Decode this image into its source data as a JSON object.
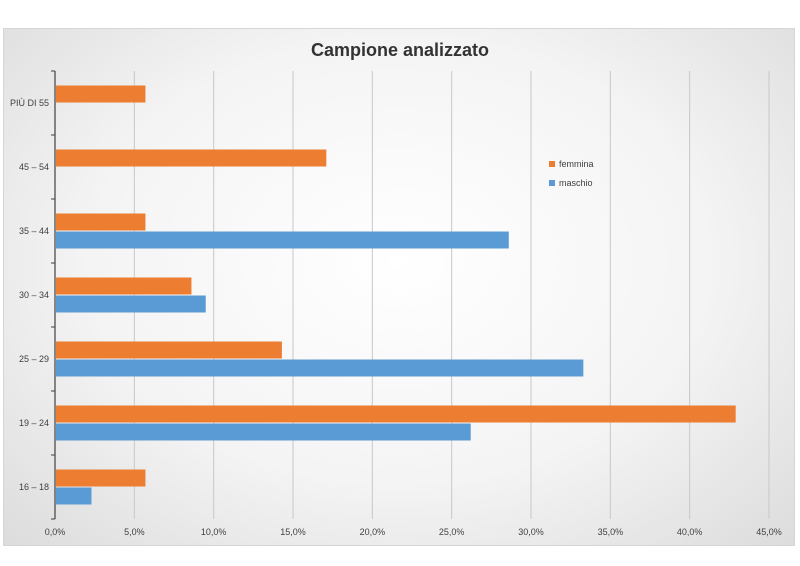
{
  "chart_data": {
    "type": "bar",
    "orientation": "horizontal",
    "title": "Campione analizzato",
    "xlabel": "",
    "ylabel": "",
    "categories": [
      "16 – 18",
      "19 – 24",
      "25 – 29",
      "30 – 34",
      "35 – 44",
      "45 – 54",
      "PIÙ DI 55"
    ],
    "series": [
      {
        "name": "femmina",
        "color": "#ED7D31",
        "values": [
          5.7,
          42.9,
          14.3,
          8.6,
          5.7,
          17.1,
          5.7
        ]
      },
      {
        "name": "maschio",
        "color": "#5B9BD5",
        "values": [
          2.3,
          26.2,
          33.3,
          9.5,
          28.6,
          0,
          0
        ]
      }
    ],
    "xlim": [
      0,
      45
    ],
    "x_tick_labels": [
      "0,0%",
      "5,0%",
      "10,0%",
      "15,0%",
      "20,0%",
      "25,0%",
      "30,0%",
      "35,0%",
      "40,0%",
      "45,0%"
    ],
    "grid": "vertical",
    "legend_position": "right"
  }
}
